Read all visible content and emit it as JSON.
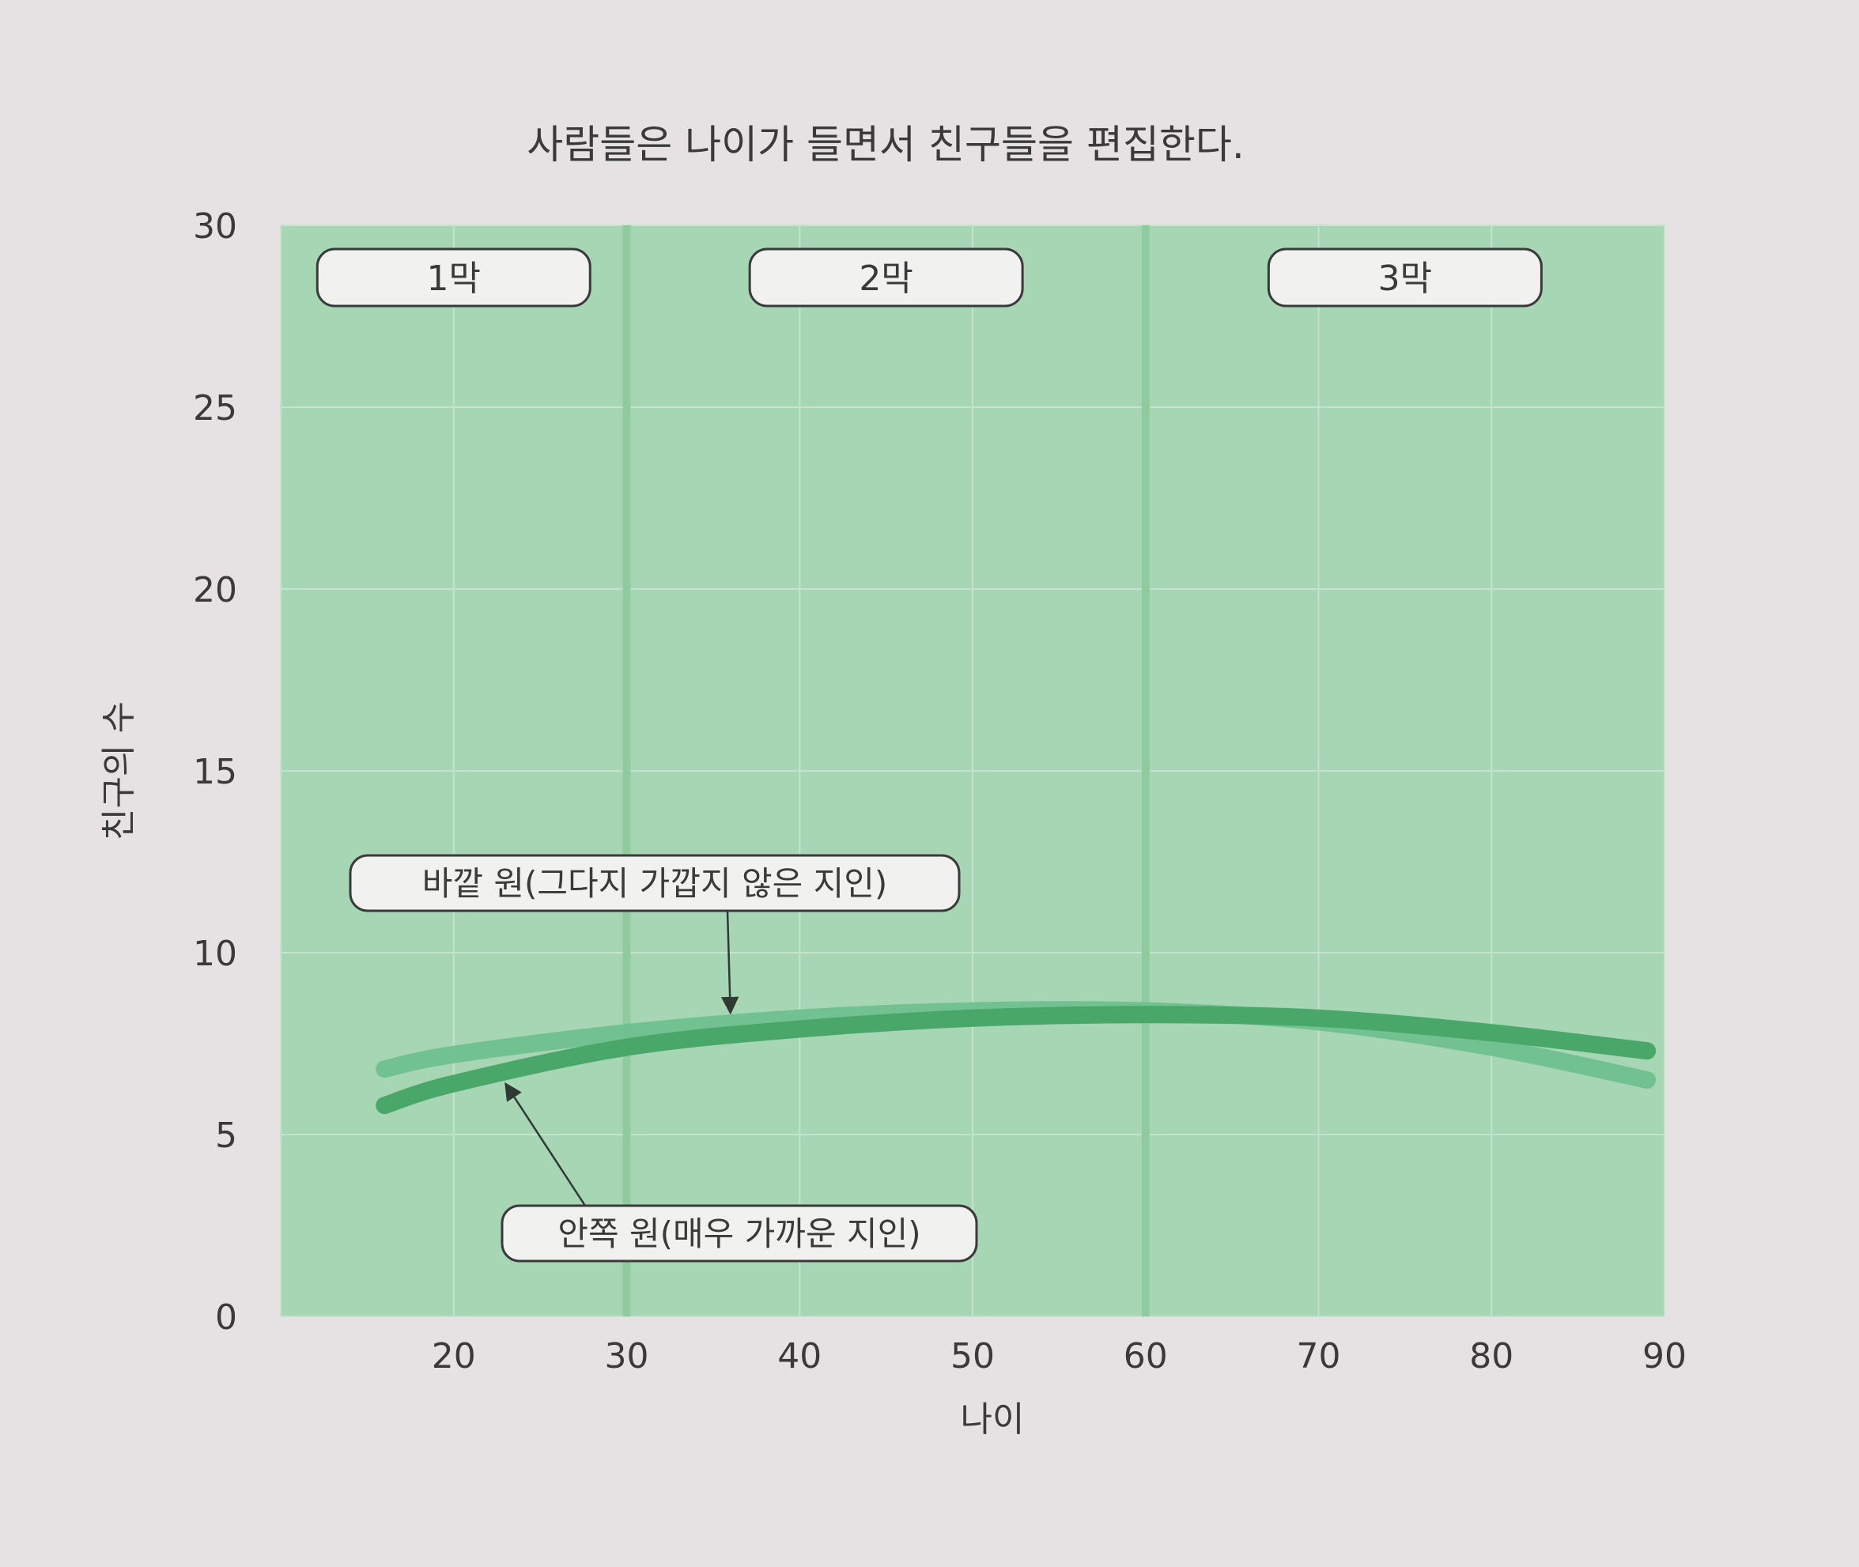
{
  "chart_data": {
    "type": "line",
    "title": "사람들은 나이가 들면서 친구들을 편집한다.",
    "xlabel": "나이",
    "ylabel": "친구의 수",
    "xlim": [
      10,
      90
    ],
    "ylim": [
      0,
      30
    ],
    "x_ticks": [
      20,
      30,
      40,
      50,
      60,
      70,
      80,
      90
    ],
    "y_ticks": [
      0,
      5,
      10,
      15,
      20,
      25,
      30
    ],
    "grid": true,
    "acts": [
      {
        "label": "1막",
        "x_from": 10,
        "x_to": 30
      },
      {
        "label": "2막",
        "x_from": 30,
        "x_to": 60
      },
      {
        "label": "3막",
        "x_from": 60,
        "x_to": 90
      }
    ],
    "series": [
      {
        "name": "바깥 원(그다지 가깝지 않은 지인)",
        "color": "#6fc08f",
        "x": [
          16,
          20,
          30,
          40,
          50,
          60,
          70,
          80,
          89
        ],
        "y": [
          6.8,
          7.2,
          7.8,
          8.2,
          8.4,
          8.4,
          8.1,
          7.4,
          6.5
        ]
      },
      {
        "name": "안쪽 원(매우 가까운 지인)",
        "color": "#4aa76a",
        "x": [
          16,
          20,
          30,
          40,
          50,
          60,
          70,
          80,
          89
        ],
        "y": [
          5.8,
          6.4,
          7.4,
          7.9,
          8.2,
          8.3,
          8.2,
          7.8,
          7.3
        ]
      }
    ],
    "annotations": [
      {
        "text": "바깥 원(그다지 가깝지 않은 지인)",
        "series": 0,
        "arrow_to_x": 36
      },
      {
        "text": "안쪽 원(매우 가까운 지인)",
        "series": 1,
        "arrow_to_x": 23
      }
    ]
  },
  "colors": {
    "page_background": "#e6e2e3",
    "plot_background": "#a7d6b5",
    "gridline": "#c3e3cd",
    "act_divider": "#8fcb9f",
    "text": "#3a3a3a"
  }
}
